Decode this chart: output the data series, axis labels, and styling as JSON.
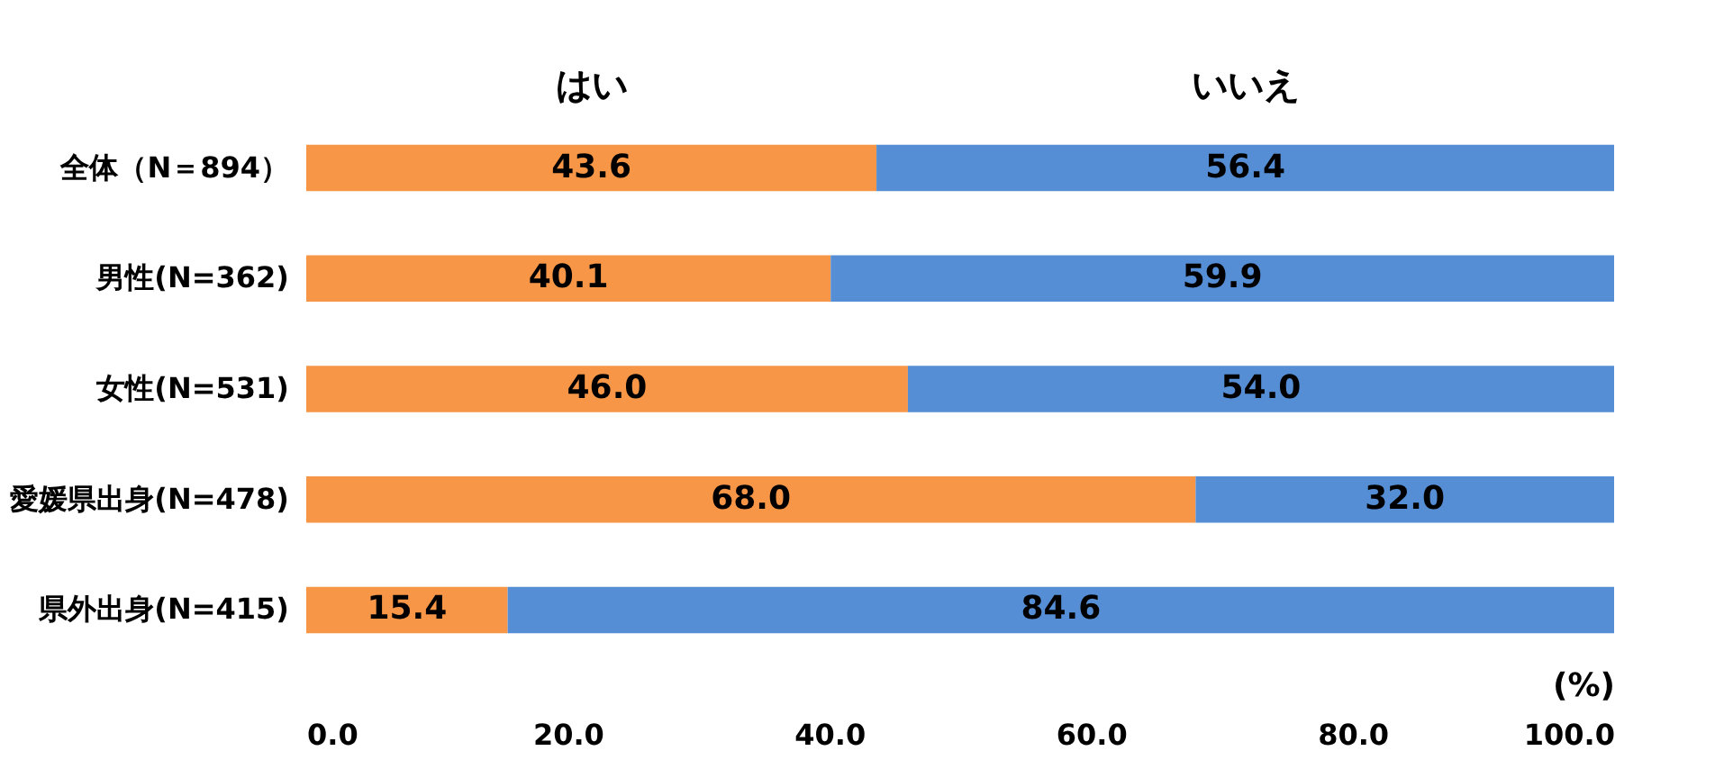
{
  "chart_data": {
    "type": "bar",
    "orientation": "horizontal",
    "stacked": true,
    "categories": [
      "全体（N＝894）",
      "男性(N=362)",
      "女性(N=531)",
      "愛媛県出身(N=478)",
      "県外出身(N=415)"
    ],
    "series": [
      {
        "name": "はい",
        "color": "#f79646",
        "values": [
          43.6,
          40.1,
          46.0,
          68.0,
          15.4
        ],
        "value_labels": [
          "43.6",
          "40.1",
          "46.0",
          "68.0",
          "15.4"
        ]
      },
      {
        "name": "いいえ",
        "color": "#558ed5",
        "values": [
          56.4,
          59.9,
          54.0,
          32.0,
          84.6
        ],
        "value_labels": [
          "56.4",
          "59.9",
          "54.0",
          "32.0",
          "84.6"
        ]
      }
    ],
    "xlabel": "(%)",
    "xlim": [
      0,
      100
    ],
    "xticks": [
      {
        "value": 0,
        "label": "0.0"
      },
      {
        "value": 20,
        "label": "20.0"
      },
      {
        "value": 40,
        "label": "40.0"
      },
      {
        "value": 60,
        "label": "60.0"
      },
      {
        "value": 80,
        "label": "80.0"
      },
      {
        "value": 100,
        "label": "100.0"
      }
    ],
    "grid": false,
    "legend": false
  }
}
